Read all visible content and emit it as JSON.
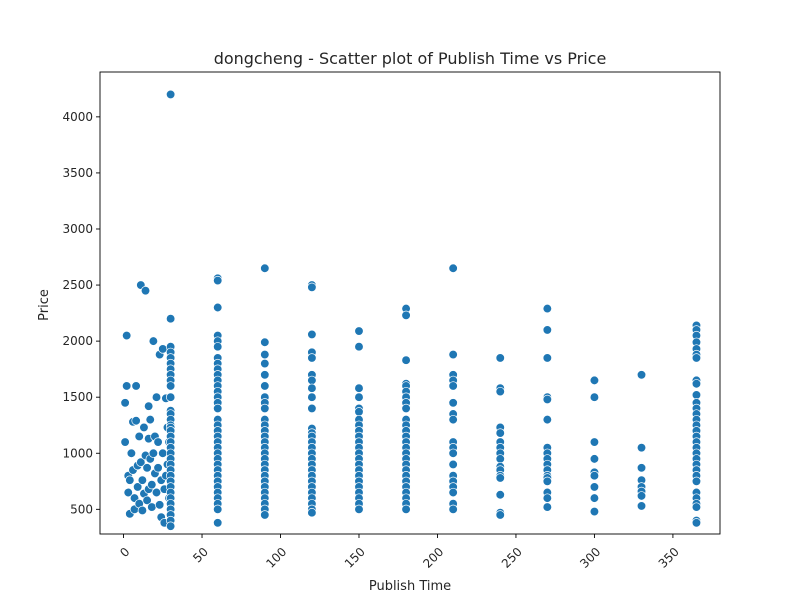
{
  "chart_data": {
    "type": "scatter",
    "title": "dongcheng - Scatter plot of Publish Time vs Price",
    "xlabel": "Publish Time",
    "ylabel": "Price",
    "xlim": [
      -15,
      380
    ],
    "ylim": [
      280,
      4400
    ],
    "xticks": [
      0,
      50,
      100,
      150,
      200,
      250,
      300,
      350
    ],
    "yticks": [
      500,
      1000,
      1500,
      2000,
      2500,
      3000,
      3500,
      4000
    ],
    "marker_color": "#1f77b4",
    "grid": false,
    "points": [
      [
        1,
        1450
      ],
      [
        1,
        1100
      ],
      [
        2,
        2050
      ],
      [
        2,
        1600
      ],
      [
        3,
        800
      ],
      [
        3,
        650
      ],
      [
        4,
        460
      ],
      [
        4,
        760
      ],
      [
        5,
        1000
      ],
      [
        6,
        850
      ],
      [
        6,
        1280
      ],
      [
        7,
        600
      ],
      [
        7,
        500
      ],
      [
        8,
        1600
      ],
      [
        8,
        1290
      ],
      [
        9,
        890
      ],
      [
        9,
        700
      ],
      [
        10,
        1150
      ],
      [
        10,
        550
      ],
      [
        11,
        2500
      ],
      [
        11,
        920
      ],
      [
        12,
        760
      ],
      [
        12,
        490
      ],
      [
        13,
        1230
      ],
      [
        13,
        640
      ],
      [
        14,
        2450
      ],
      [
        14,
        980
      ],
      [
        15,
        870
      ],
      [
        15,
        580
      ],
      [
        16,
        1420
      ],
      [
        16,
        1130
      ],
      [
        16,
        680
      ],
      [
        17,
        1300
      ],
      [
        17,
        950
      ],
      [
        18,
        520
      ],
      [
        18,
        720
      ],
      [
        19,
        1000
      ],
      [
        19,
        2000
      ],
      [
        20,
        820
      ],
      [
        20,
        1150
      ],
      [
        21,
        1500
      ],
      [
        21,
        650
      ],
      [
        22,
        870
      ],
      [
        22,
        1100
      ],
      [
        23,
        1880
      ],
      [
        23,
        540
      ],
      [
        24,
        430
      ],
      [
        24,
        760
      ],
      [
        25,
        1930
      ],
      [
        25,
        1000
      ],
      [
        26,
        380
      ],
      [
        26,
        680
      ],
      [
        27,
        1490
      ],
      [
        27,
        800
      ],
      [
        28,
        900
      ],
      [
        28,
        1230
      ],
      [
        29,
        1100
      ],
      [
        29,
        600
      ],
      [
        30,
        4200
      ],
      [
        30,
        2200
      ],
      [
        30,
        1950
      ],
      [
        30,
        1900
      ],
      [
        30,
        1850
      ],
      [
        30,
        1800
      ],
      [
        30,
        1750
      ],
      [
        30,
        1700
      ],
      [
        30,
        1650
      ],
      [
        30,
        1600
      ],
      [
        30,
        1500
      ],
      [
        30,
        1380
      ],
      [
        30,
        1350
      ],
      [
        30,
        1300
      ],
      [
        30,
        1250
      ],
      [
        30,
        1230
      ],
      [
        30,
        1200
      ],
      [
        30,
        1150
      ],
      [
        30,
        1100
      ],
      [
        30,
        1050
      ],
      [
        30,
        1000
      ],
      [
        30,
        950
      ],
      [
        30,
        900
      ],
      [
        30,
        850
      ],
      [
        30,
        800
      ],
      [
        30,
        750
      ],
      [
        30,
        700
      ],
      [
        30,
        650
      ],
      [
        30,
        600
      ],
      [
        30,
        550
      ],
      [
        30,
        500
      ],
      [
        30,
        450
      ],
      [
        30,
        400
      ],
      [
        30,
        350
      ],
      [
        60,
        2560
      ],
      [
        60,
        2540
      ],
      [
        60,
        2300
      ],
      [
        60,
        2050
      ],
      [
        60,
        2000
      ],
      [
        60,
        1950
      ],
      [
        60,
        1850
      ],
      [
        60,
        1800
      ],
      [
        60,
        1750
      ],
      [
        60,
        1700
      ],
      [
        60,
        1650
      ],
      [
        60,
        1600
      ],
      [
        60,
        1550
      ],
      [
        60,
        1500
      ],
      [
        60,
        1450
      ],
      [
        60,
        1400
      ],
      [
        60,
        1300
      ],
      [
        60,
        1250
      ],
      [
        60,
        1200
      ],
      [
        60,
        1150
      ],
      [
        60,
        1100
      ],
      [
        60,
        1050
      ],
      [
        60,
        1000
      ],
      [
        60,
        950
      ],
      [
        60,
        900
      ],
      [
        60,
        850
      ],
      [
        60,
        800
      ],
      [
        60,
        750
      ],
      [
        60,
        700
      ],
      [
        60,
        650
      ],
      [
        60,
        600
      ],
      [
        60,
        550
      ],
      [
        60,
        500
      ],
      [
        60,
        380
      ],
      [
        90,
        2650
      ],
      [
        90,
        1990
      ],
      [
        90,
        1880
      ],
      [
        90,
        1800
      ],
      [
        90,
        1700
      ],
      [
        90,
        1600
      ],
      [
        90,
        1500
      ],
      [
        90,
        1450
      ],
      [
        90,
        1400
      ],
      [
        90,
        1300
      ],
      [
        90,
        1250
      ],
      [
        90,
        1200
      ],
      [
        90,
        1150
      ],
      [
        90,
        1100
      ],
      [
        90,
        1050
      ],
      [
        90,
        1000
      ],
      [
        90,
        950
      ],
      [
        90,
        900
      ],
      [
        90,
        850
      ],
      [
        90,
        800
      ],
      [
        90,
        750
      ],
      [
        90,
        700
      ],
      [
        90,
        650
      ],
      [
        90,
        600
      ],
      [
        90,
        550
      ],
      [
        90,
        500
      ],
      [
        90,
        450
      ],
      [
        120,
        2500
      ],
      [
        120,
        2480
      ],
      [
        120,
        2060
      ],
      [
        120,
        1900
      ],
      [
        120,
        1850
      ],
      [
        120,
        1700
      ],
      [
        120,
        1650
      ],
      [
        120,
        1580
      ],
      [
        120,
        1500
      ],
      [
        120,
        1400
      ],
      [
        120,
        1220
      ],
      [
        120,
        1180
      ],
      [
        120,
        1150
      ],
      [
        120,
        1100
      ],
      [
        120,
        1050
      ],
      [
        120,
        1000
      ],
      [
        120,
        950
      ],
      [
        120,
        900
      ],
      [
        120,
        850
      ],
      [
        120,
        800
      ],
      [
        120,
        750
      ],
      [
        120,
        700
      ],
      [
        120,
        650
      ],
      [
        120,
        600
      ],
      [
        120,
        550
      ],
      [
        120,
        500
      ],
      [
        120,
        470
      ],
      [
        150,
        2090
      ],
      [
        150,
        1950
      ],
      [
        150,
        1580
      ],
      [
        150,
        1500
      ],
      [
        150,
        1400
      ],
      [
        150,
        1370
      ],
      [
        150,
        1300
      ],
      [
        150,
        1250
      ],
      [
        150,
        1200
      ],
      [
        150,
        1150
      ],
      [
        150,
        1100
      ],
      [
        150,
        1050
      ],
      [
        150,
        1000
      ],
      [
        150,
        950
      ],
      [
        150,
        900
      ],
      [
        150,
        850
      ],
      [
        150,
        800
      ],
      [
        150,
        750
      ],
      [
        150,
        700
      ],
      [
        150,
        650
      ],
      [
        150,
        600
      ],
      [
        150,
        550
      ],
      [
        150,
        500
      ],
      [
        180,
        2290
      ],
      [
        180,
        2230
      ],
      [
        180,
        1830
      ],
      [
        180,
        1620
      ],
      [
        180,
        1600
      ],
      [
        180,
        1550
      ],
      [
        180,
        1500
      ],
      [
        180,
        1450
      ],
      [
        180,
        1400
      ],
      [
        180,
        1300
      ],
      [
        180,
        1250
      ],
      [
        180,
        1200
      ],
      [
        180,
        1150
      ],
      [
        180,
        1100
      ],
      [
        180,
        1050
      ],
      [
        180,
        1000
      ],
      [
        180,
        950
      ],
      [
        180,
        900
      ],
      [
        180,
        850
      ],
      [
        180,
        800
      ],
      [
        180,
        750
      ],
      [
        180,
        700
      ],
      [
        180,
        650
      ],
      [
        180,
        600
      ],
      [
        180,
        550
      ],
      [
        180,
        500
      ],
      [
        210,
        2650
      ],
      [
        210,
        1880
      ],
      [
        210,
        1700
      ],
      [
        210,
        1650
      ],
      [
        210,
        1600
      ],
      [
        210,
        1450
      ],
      [
        210,
        1350
      ],
      [
        210,
        1300
      ],
      [
        210,
        1100
      ],
      [
        210,
        1050
      ],
      [
        210,
        1000
      ],
      [
        210,
        900
      ],
      [
        210,
        800
      ],
      [
        210,
        750
      ],
      [
        210,
        700
      ],
      [
        210,
        650
      ],
      [
        210,
        550
      ],
      [
        210,
        500
      ],
      [
        240,
        1850
      ],
      [
        240,
        1580
      ],
      [
        240,
        1550
      ],
      [
        240,
        1230
      ],
      [
        240,
        1180
      ],
      [
        240,
        1100
      ],
      [
        240,
        1050
      ],
      [
        240,
        1000
      ],
      [
        240,
        950
      ],
      [
        240,
        880
      ],
      [
        240,
        850
      ],
      [
        240,
        800
      ],
      [
        240,
        780
      ],
      [
        240,
        630
      ],
      [
        240,
        470
      ],
      [
        240,
        450
      ],
      [
        270,
        2290
      ],
      [
        270,
        2100
      ],
      [
        270,
        1850
      ],
      [
        270,
        1500
      ],
      [
        270,
        1480
      ],
      [
        270,
        1300
      ],
      [
        270,
        1050
      ],
      [
        270,
        1000
      ],
      [
        270,
        950
      ],
      [
        270,
        900
      ],
      [
        270,
        850
      ],
      [
        270,
        800
      ],
      [
        270,
        780
      ],
      [
        270,
        750
      ],
      [
        270,
        650
      ],
      [
        270,
        600
      ],
      [
        270,
        520
      ],
      [
        300,
        1650
      ],
      [
        300,
        1500
      ],
      [
        300,
        1100
      ],
      [
        300,
        950
      ],
      [
        300,
        830
      ],
      [
        300,
        800
      ],
      [
        300,
        700
      ],
      [
        300,
        600
      ],
      [
        300,
        480
      ],
      [
        330,
        1700
      ],
      [
        330,
        1050
      ],
      [
        330,
        870
      ],
      [
        330,
        760
      ],
      [
        330,
        700
      ],
      [
        330,
        660
      ],
      [
        330,
        620
      ],
      [
        330,
        530
      ],
      [
        365,
        2140
      ],
      [
        365,
        2100
      ],
      [
        365,
        2050
      ],
      [
        365,
        1990
      ],
      [
        365,
        1930
      ],
      [
        365,
        1880
      ],
      [
        365,
        1850
      ],
      [
        365,
        1650
      ],
      [
        365,
        1620
      ],
      [
        365,
        1520
      ],
      [
        365,
        1450
      ],
      [
        365,
        1400
      ],
      [
        365,
        1350
      ],
      [
        365,
        1300
      ],
      [
        365,
        1250
      ],
      [
        365,
        1200
      ],
      [
        365,
        1150
      ],
      [
        365,
        1100
      ],
      [
        365,
        1050
      ],
      [
        365,
        1000
      ],
      [
        365,
        950
      ],
      [
        365,
        900
      ],
      [
        365,
        850
      ],
      [
        365,
        800
      ],
      [
        365,
        750
      ],
      [
        365,
        650
      ],
      [
        365,
        600
      ],
      [
        365,
        550
      ],
      [
        365,
        520
      ],
      [
        365,
        400
      ],
      [
        365,
        380
      ]
    ]
  }
}
